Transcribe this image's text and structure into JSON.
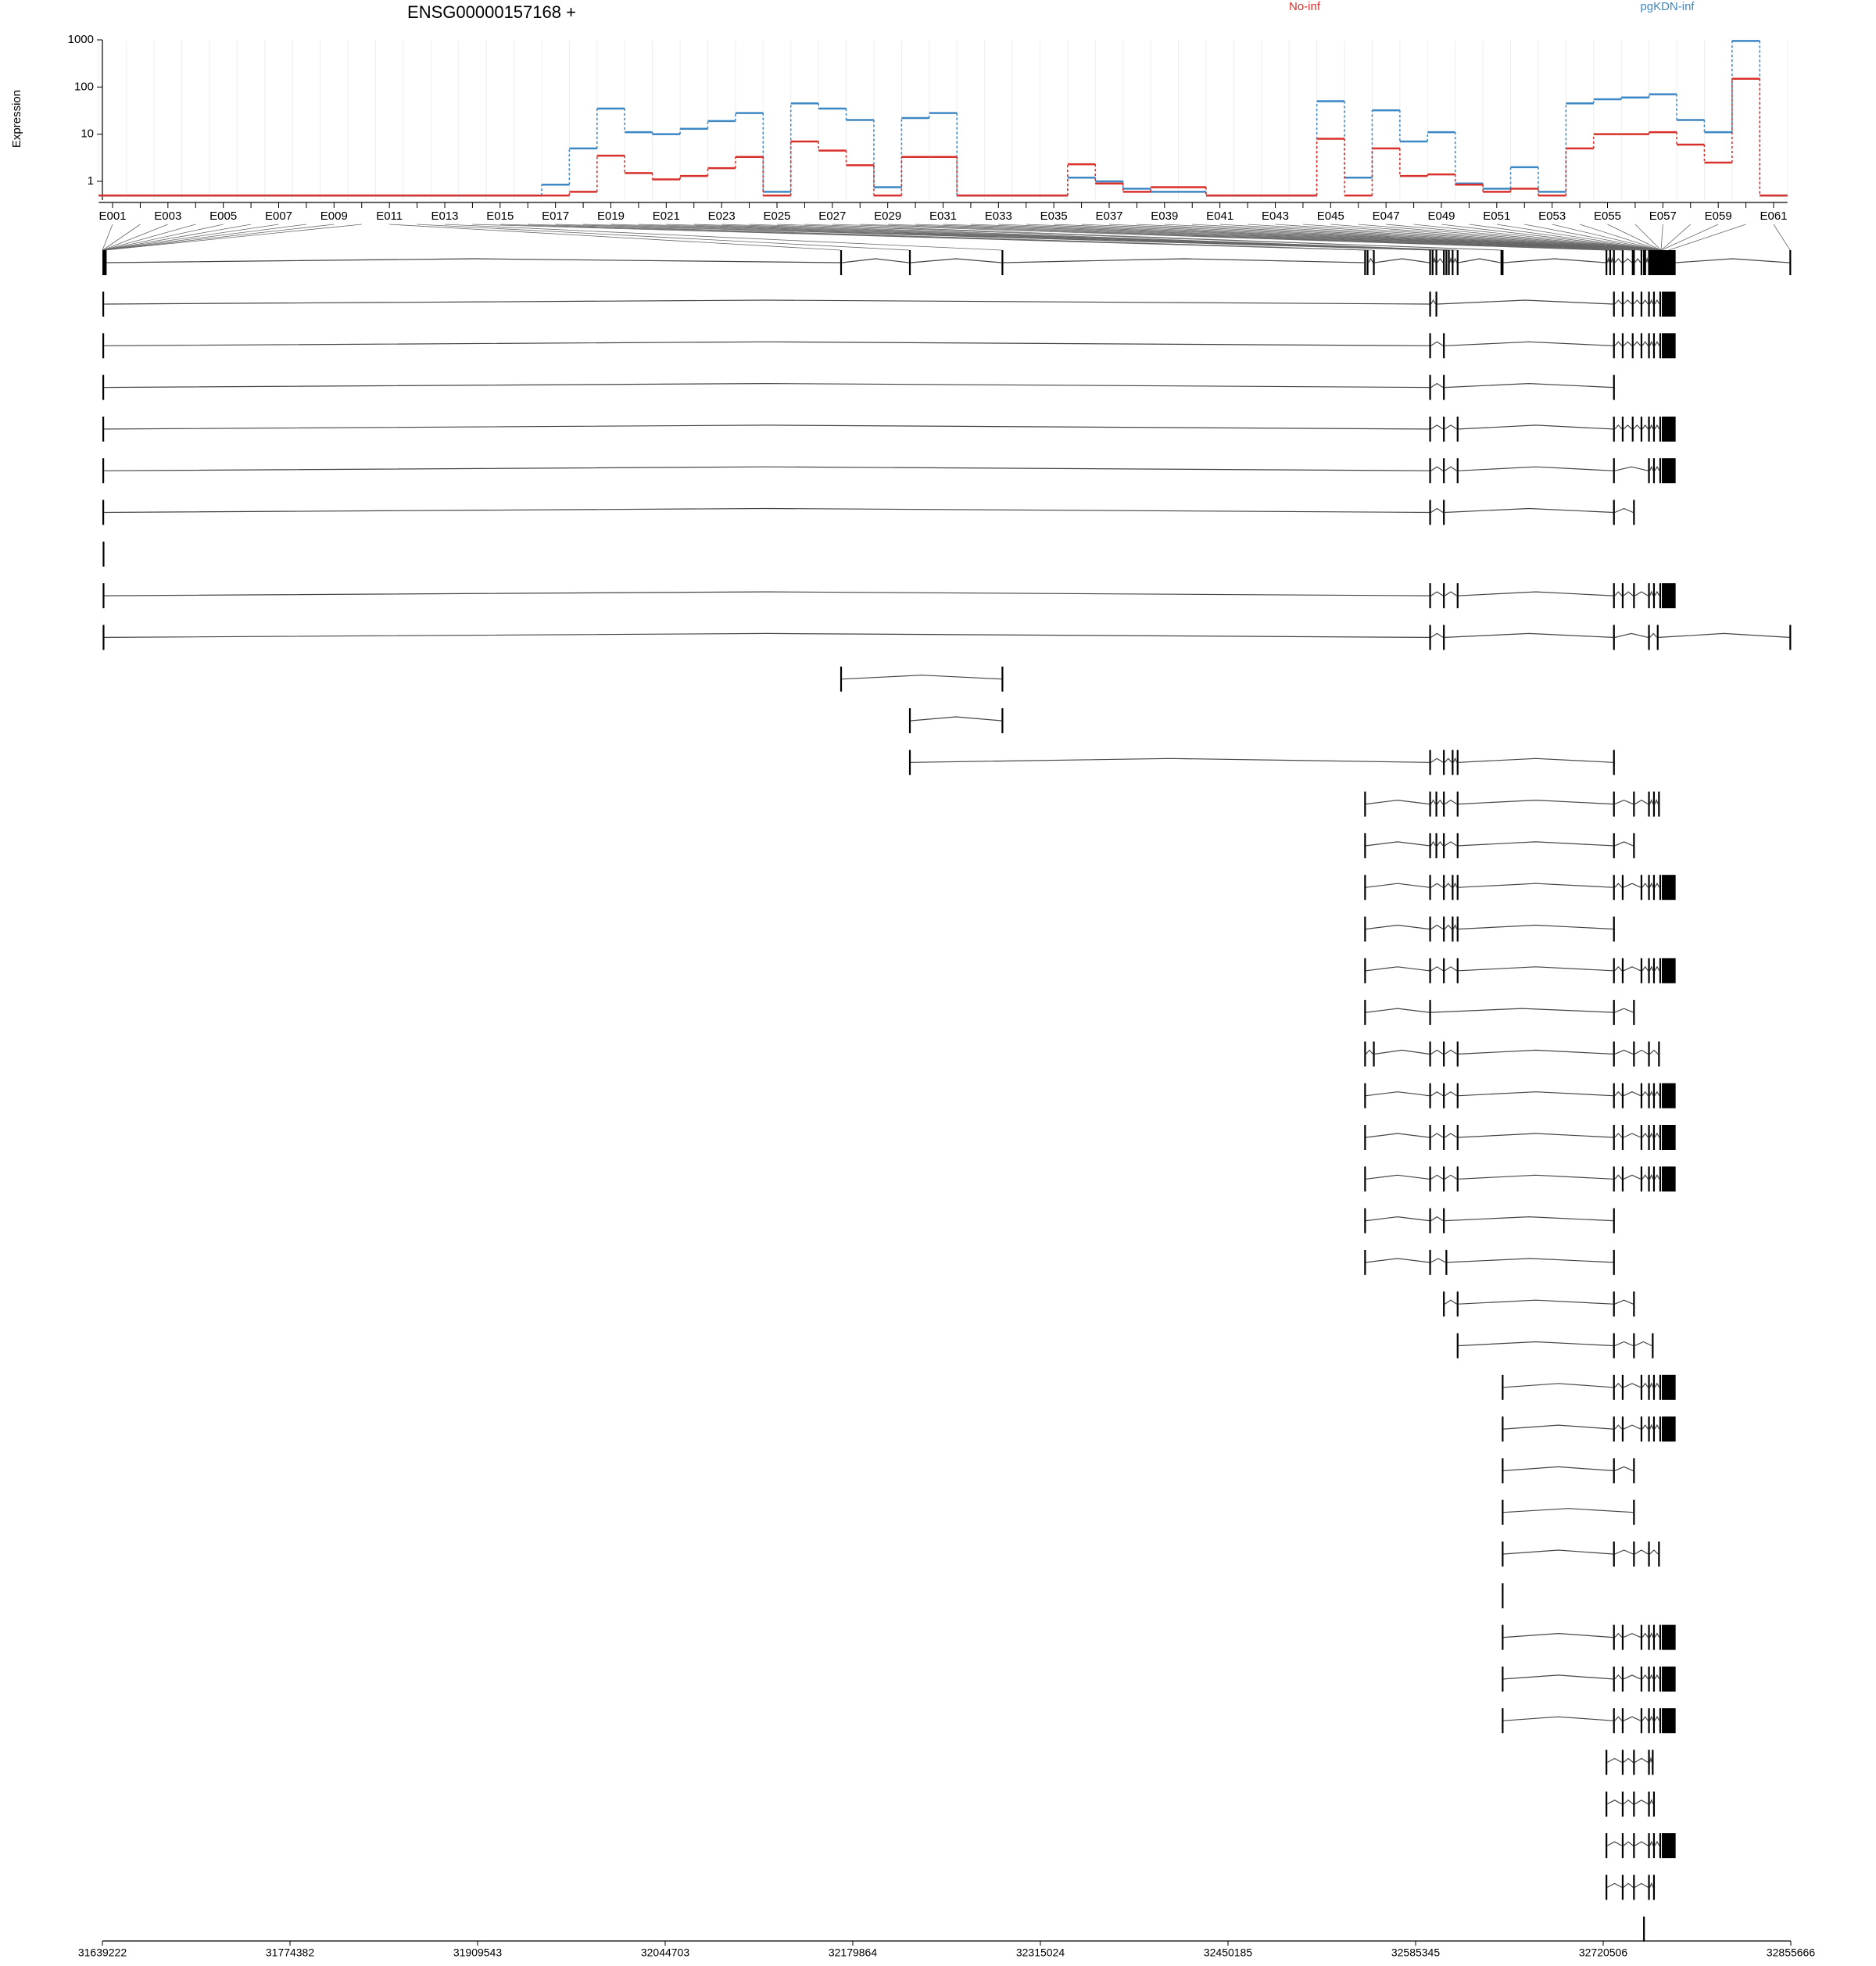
{
  "chart_data": {
    "type": "exon-expression",
    "title": "ENSG00000157168 +",
    "y_label": "Expression",
    "log_y": true,
    "grid": true,
    "categories": [
      "E001",
      null,
      "E003",
      null,
      "E005",
      null,
      "E007",
      null,
      "E009",
      null,
      "E011",
      null,
      "E013",
      null,
      "E015",
      null,
      "E017",
      null,
      "E019",
      null,
      "E021",
      null,
      "E023",
      null,
      "E025",
      null,
      "E027",
      null,
      "E029",
      null,
      "E031",
      null,
      "E033",
      null,
      "E035",
      null,
      "E037",
      null,
      "E039",
      null,
      "E041",
      null,
      "E043",
      null,
      "E045",
      null,
      "E047",
      null,
      "E049",
      null,
      "E051",
      null,
      "E053",
      null,
      "E055",
      null,
      "E057",
      null,
      "E059",
      null,
      "E061"
    ],
    "ylim": [
      0.4,
      1000
    ],
    "yticks": [
      1,
      10,
      100,
      1000
    ],
    "series": [
      {
        "name": "pgKDN-inf",
        "color": "#3d87c4",
        "values": [
          0.5,
          0.5,
          0.5,
          0.5,
          0.5,
          0.5,
          0.5,
          0.5,
          0.5,
          0.5,
          0.5,
          0.5,
          0.5,
          0.5,
          0.5,
          0.5,
          0.85,
          5,
          35,
          11,
          10,
          13,
          19,
          28,
          0.6,
          45,
          35,
          20,
          0.75,
          22,
          28,
          0.5,
          0.5,
          0.5,
          0.5,
          1.2,
          1.0,
          0.7,
          0.6,
          0.6,
          0.5,
          0.5,
          0.5,
          0.5,
          50,
          1.2,
          32,
          7,
          11,
          0.9,
          0.7,
          2,
          0.6,
          45,
          55,
          60,
          70,
          20,
          11,
          950,
          0.5
        ]
      },
      {
        "name": "No-inf",
        "color": "#d8312c",
        "values": [
          0.5,
          0.5,
          0.5,
          0.5,
          0.5,
          0.5,
          0.5,
          0.5,
          0.5,
          0.5,
          0.5,
          0.5,
          0.5,
          0.5,
          0.5,
          0.5,
          0.5,
          0.6,
          3.5,
          1.5,
          1.1,
          1.3,
          1.9,
          3.3,
          0.5,
          7,
          4.5,
          2.2,
          0.5,
          3.3,
          3.3,
          0.5,
          0.5,
          0.5,
          0.5,
          2.3,
          0.9,
          0.6,
          0.75,
          0.75,
          0.5,
          0.5,
          0.5,
          0.5,
          8,
          0.5,
          5,
          1.3,
          1.4,
          0.85,
          0.6,
          0.7,
          0.5,
          5,
          10,
          10,
          11,
          6,
          2.5,
          150,
          0.5
        ]
      }
    ],
    "xlim": [
      31639222,
      32855666
    ],
    "xticks": [
      31639222,
      31774382,
      31909543,
      32044703,
      32179864,
      32315024,
      32450185,
      32585345,
      32720506,
      32855666
    ],
    "gene_model": {
      "exon_starts": [
        31639222,
        31639422,
        31639622,
        31639822,
        31640022,
        31640222,
        31640422,
        31640622,
        31640822,
        31641022,
        32170812,
        32220367,
        32287041,
        32548331,
        32550133,
        32554638,
        32595183,
        32596985,
        32599688,
        32605094,
        32606896,
        32608698,
        32611401,
        32615005,
        32646540,
        32647441,
        32722224,
        32724927,
        32727630,
        32733937,
        32741145,
        32742046,
        32747452,
        32749254,
        32750155,
        32752858,
        32753759,
        32754660,
        32755561,
        32756462,
        32757363,
        32758264,
        32759165,
        32760066,
        32760967,
        32761067,
        32761167,
        32761267,
        32761367,
        32761467,
        32761567,
        32761667,
        32761767,
        32761867,
        32761967,
        32762067,
        32762167,
        32762267,
        32762367,
        32762769,
        32854671
      ],
      "exon_ends": [
        31639312,
        31639512,
        31639712,
        31639912,
        31640112,
        31640312,
        31640512,
        31640712,
        31640912,
        31641112,
        32170902,
        32220457,
        32287131,
        32548421,
        32550223,
        32554728,
        32595273,
        32597075,
        32599778,
        32605184,
        32606986,
        32608788,
        32611491,
        32615095,
        32646630,
        32647531,
        32722314,
        32725017,
        32727720,
        32734027,
        32741235,
        32742136,
        32747542,
        32749344,
        32750245,
        32752948,
        32753849,
        32754750,
        32755651,
        32756552,
        32757453,
        32758354,
        32759255,
        32760156,
        32761057,
        32761157,
        32761257,
        32761357,
        32761457,
        32761557,
        32761657,
        32761757,
        32761857,
        32761957,
        32762057,
        32762157,
        32762257,
        32762357,
        32762457,
        32772680,
        32855666
      ],
      "transcripts": [
        [
          0,
          16,
          18,
          28,
          29,
          30,
          32,
          35,
          39,
          44,
          59
        ],
        [
          0,
          16,
          19,
          28,
          29,
          30,
          32,
          35,
          39,
          44,
          59
        ],
        [
          0,
          16,
          19,
          28
        ],
        [
          0,
          16,
          19,
          23,
          28,
          29,
          30,
          32,
          35,
          39,
          44,
          59
        ],
        [
          0,
          16,
          19,
          23,
          28,
          35,
          39,
          44,
          59
        ],
        [
          0,
          16,
          19,
          28,
          31
        ],
        [
          1
        ],
        [
          1,
          16,
          19,
          23,
          28,
          29,
          31,
          35,
          39,
          44,
          59
        ],
        [
          1,
          16,
          19,
          28,
          35,
          42,
          60
        ],
        [
          10,
          12
        ],
        [
          11,
          12
        ],
        [
          11,
          16,
          19,
          22,
          23,
          28
        ],
        [
          13,
          16,
          18,
          19,
          23,
          28,
          31,
          35,
          39,
          43
        ],
        [
          13,
          16,
          18,
          19,
          23,
          28,
          31
        ],
        [
          13,
          16,
          19,
          22,
          23,
          28,
          29,
          32,
          35,
          39,
          44,
          59
        ],
        [
          13,
          16,
          19,
          22,
          23,
          28
        ],
        [
          13,
          16,
          19,
          23,
          28,
          29,
          32,
          35,
          39,
          44,
          59
        ],
        [
          13,
          16,
          28,
          31
        ],
        [
          13,
          15,
          16,
          19,
          23,
          28,
          31,
          35,
          43
        ],
        [
          13,
          16,
          19,
          23,
          28,
          29,
          32,
          35,
          39,
          44,
          59
        ],
        [
          13,
          16,
          19,
          23,
          28,
          29,
          32,
          35,
          39,
          44,
          59
        ],
        [
          13,
          16,
          19,
          23,
          28,
          29,
          32,
          35,
          39,
          44,
          59
        ],
        [
          13,
          16,
          19,
          28
        ],
        [
          13,
          16,
          20,
          28
        ],
        [
          19,
          23,
          28,
          31
        ],
        [
          23,
          28,
          31,
          38
        ],
        [
          25,
          28,
          29,
          32,
          35,
          39,
          44,
          59
        ],
        [
          25,
          28,
          29,
          32,
          35,
          39,
          44,
          59
        ],
        [
          25,
          28,
          31
        ],
        [
          25,
          31
        ],
        [
          25,
          28,
          31,
          35,
          43
        ],
        [
          25
        ],
        [
          25,
          28,
          29,
          32,
          35,
          39,
          44,
          59
        ],
        [
          25,
          28,
          29,
          32,
          35,
          39,
          44,
          59
        ],
        [
          25,
          28,
          29,
          32,
          35,
          39,
          44,
          59
        ],
        [
          26,
          29,
          31,
          35,
          38
        ],
        [
          26,
          29,
          31,
          35,
          39
        ],
        [
          26,
          29,
          31,
          35,
          39,
          44,
          59
        ],
        [
          26,
          29,
          31,
          35,
          39
        ],
        [
          33
        ]
      ]
    }
  }
}
